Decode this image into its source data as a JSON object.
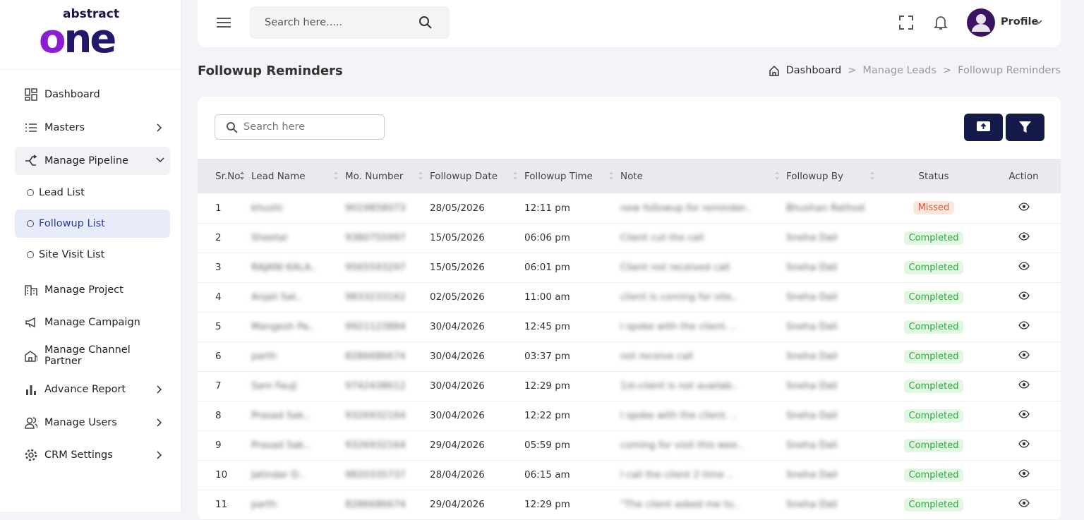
{
  "logo": {
    "top": "abstract",
    "main": "one"
  },
  "nav": {
    "items": [
      "Dashboard",
      "Masters",
      "Manage Pipeline"
    ],
    "sub_items": [
      "Lead List",
      "Followup List",
      "Site Visit List"
    ],
    "more_items": [
      "Manage Project",
      "Manage Campaign",
      "Manage Channel Partner",
      "Advance Report",
      "Manage Users",
      "CRM Settings"
    ]
  },
  "header": {
    "search_placeholder": "Search here.....",
    "profile": "Profile"
  },
  "page": {
    "title": "Followup Reminders",
    "breadcrumb": [
      "Dashboard",
      "Manage Leads",
      "Followup Reminders"
    ],
    "separator": ">"
  },
  "table": {
    "search_placeholder": "Search here",
    "columns": [
      "Sr.No.",
      "Lead Name",
      "Mo. Number",
      "Followup Date",
      "Followup Time",
      "Note",
      "Followup By",
      "Status",
      "Action"
    ],
    "rows": [
      [
        "1",
        "khushi",
        "9019858073",
        "28/05/2026",
        "12:11 pm",
        "new followup for reminder..",
        "Bhushan Rathod",
        "Missed"
      ],
      [
        "2",
        "Sheetal",
        "9380755997",
        "15/05/2026",
        "06:06 pm",
        "Client cut the call",
        "Sneha Dali",
        "Completed"
      ],
      [
        "3",
        "RAJANI KALA..",
        "9565593297",
        "15/05/2026",
        "06:01 pm",
        "Client not received call",
        "Sneha Dali",
        "Completed"
      ],
      [
        "4",
        "Anjali Sat..",
        "9833233162",
        "02/05/2026",
        "11:00 am",
        "client is coming for site..",
        "Sneha Dali",
        "Completed"
      ],
      [
        "5",
        "Mangesh Pa..",
        "9921123884",
        "30/04/2026",
        "12:45 pm",
        "I spoke with the client. ..",
        "Sneha Dali",
        "Completed"
      ],
      [
        "6",
        "parth",
        "8286686674",
        "30/04/2026",
        "03:37 pm",
        "not receive call",
        "Sneha Dali",
        "Completed"
      ],
      [
        "7",
        "Sam Fauji",
        "9742438612",
        "30/04/2026",
        "12:29 pm",
        "1st-client is not availab..",
        "Sneha Dali",
        "Completed"
      ],
      [
        "8",
        "Prasad Sak..",
        "9326932164",
        "30/04/2026",
        "12:22 pm",
        "I spoke with the client. ..",
        "Sneha Dali",
        "Completed"
      ],
      [
        "9",
        "Prasad Sak..",
        "9326932164",
        "29/04/2026",
        "05:59 pm",
        "coming for visit this wee..",
        "Sneha Dali",
        "Completed"
      ],
      [
        "10",
        "Jatindar D..",
        "9820335737",
        "28/04/2026",
        "06:15 am",
        "I call the client 2 time ..",
        "Sneha Dali",
        "Completed"
      ],
      [
        "11",
        "parth",
        "8286686674",
        "29/04/2026",
        "12:29 pm",
        "\"The client asked me to..",
        "Sneha Dali",
        "Completed"
      ]
    ]
  }
}
